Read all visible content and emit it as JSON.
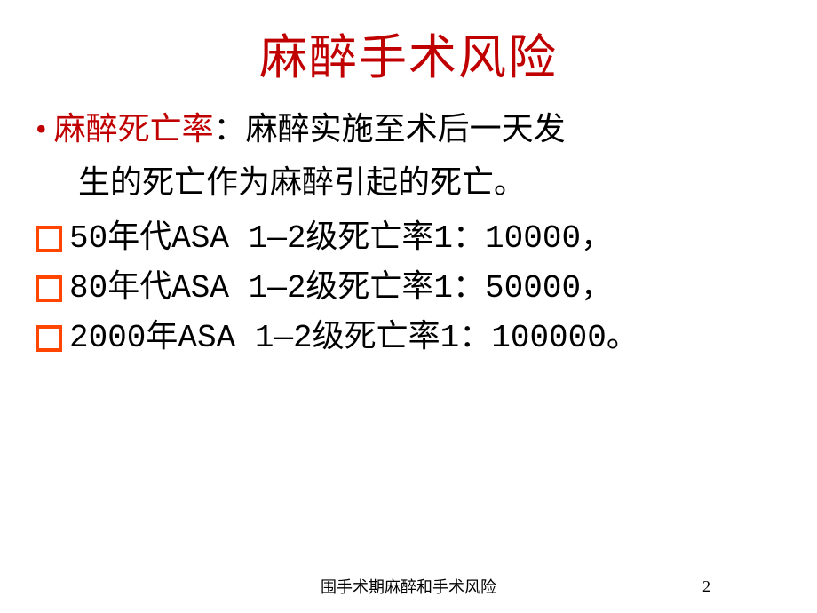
{
  "title": "麻醉手术风险",
  "definition": {
    "label": "麻醉死亡率",
    "separator": "：",
    "text_part1": "麻醉实施至术后一天发",
    "text_part2": "生的死亡作为麻醉引起的死亡。"
  },
  "items": [
    "50年代ASA 1—2级死亡率1：10000，",
    "80年代ASA 1—2级死亡率1：50000，",
    "2000年ASA 1—2级死亡率1：100000。"
  ],
  "footer": {
    "text": "围手术期麻醉和手术风险",
    "page": "2"
  },
  "colors": {
    "title_color": "#c00000",
    "bullet_color": "#c00000",
    "square_border": "#ff4500",
    "text_color": "#000000",
    "background": "#ffffff"
  }
}
